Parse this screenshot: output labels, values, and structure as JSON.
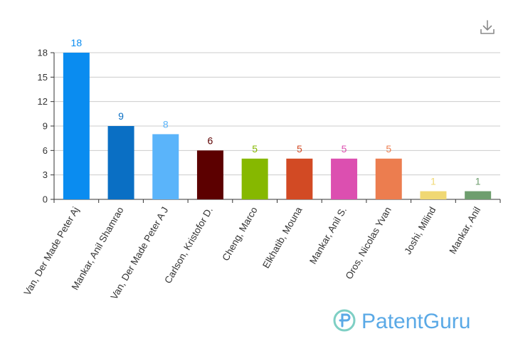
{
  "chart_data": {
    "type": "bar",
    "categories": [
      "Van, Der Made Peter Aj",
      "Mankar, Anil Shamrao",
      "Van, Der Made Peter A J",
      "Carlson, Kristofor D.",
      "Cheng, Marco",
      "Elkhatib, Mouna",
      "Mankar, Anil S.",
      "Oros, Nicolas Yvan",
      "Joshi, Milind",
      "Mankar, Anil"
    ],
    "values": [
      18,
      9,
      8,
      6,
      5,
      5,
      5,
      5,
      1,
      1
    ],
    "colors": [
      "#0a8cf0",
      "#0a6fc4",
      "#5ab4fa",
      "#5c0000",
      "#86b800",
      "#d24a24",
      "#dc4fb0",
      "#ec7d4f",
      "#f0d873",
      "#6e9e6e"
    ],
    "ylim": [
      0,
      18
    ],
    "yticks": [
      0,
      3,
      6,
      9,
      12,
      15,
      18
    ],
    "grid": true,
    "title": "",
    "xlabel": "",
    "ylabel": ""
  },
  "toolbar": {
    "download_icon": "download-icon"
  },
  "watermark": {
    "text": "PatentGuru",
    "icon": "patentguru-logo-icon"
  }
}
